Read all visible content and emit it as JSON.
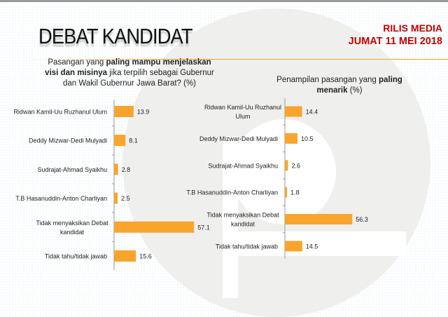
{
  "header": {
    "title": "DEBAT KANDIDAT",
    "release_line1": "RILIS MEDIA",
    "release_line2": "JUMAT 11 MEI 2018"
  },
  "colors": {
    "bar": "#F9A42D",
    "accent_text": "#C00000"
  },
  "chart_data": [
    {
      "type": "bar",
      "orientation": "horizontal",
      "title_parts": [
        {
          "text": "Pasangan yang ",
          "bold": false
        },
        {
          "text": "paling mampu menjelaskan",
          "bold": true
        },
        {
          "text": "visi dan misinya",
          "bold": true
        },
        {
          "text": " jika terpilih sebagai Gubernur",
          "bold": false
        },
        {
          "text": "dan Wakil Gubernur Jawa Barat? (%)",
          "bold": false
        }
      ],
      "categories": [
        "Ridwan Kamil-Uu Ruzhanul Ulum",
        "Deddy Mizwar-Dedi Mulyadi",
        "Sudrajat-Ahmad Syaikhu",
        "T.B Hasanuddin-Anton Charliyan",
        "Tidak menyaksikan Debat kandidat",
        "Tidak tahu/tidak jawab"
      ],
      "values": [
        13.9,
        8.1,
        2.8,
        2.5,
        57.1,
        15.6
      ],
      "data_labels": [
        "13.9",
        "8.1",
        "2.8",
        "2.5",
        "57.1",
        "15.6"
      ],
      "grid": false
    },
    {
      "type": "bar",
      "orientation": "horizontal",
      "title_parts": [
        {
          "text": "Penampilan pasangan yang ",
          "bold": false
        },
        {
          "text": "paling",
          "bold": true
        },
        {
          "text": "menarik",
          "bold": true
        },
        {
          "text": " (%)",
          "bold": false
        }
      ],
      "categories": [
        "Ridwan Kamil-Uu Ruzhanul Ulum",
        "Deddy Mizwar-Dedi Mulyadi",
        "Sudrajat-Ahmad Syaikhu",
        "T.B Hasanuddin-Anton Charliyan",
        "Tidak menyaksikan Debat kandidat",
        "Tidak tahu/tidak jawab"
      ],
      "values": [
        14.4,
        10.5,
        2.6,
        1.8,
        56.3,
        14.5
      ],
      "data_labels": [
        "14.4",
        "10.5",
        "2.6",
        "1.8",
        "56.3",
        "14.5"
      ],
      "grid": false
    }
  ]
}
